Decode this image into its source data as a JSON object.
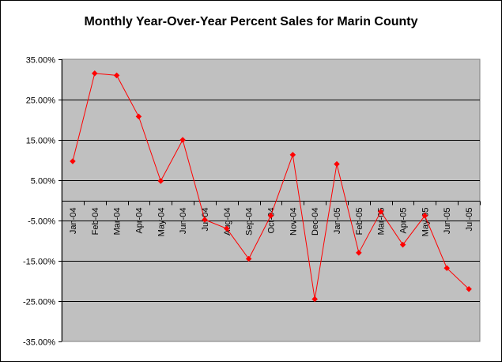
{
  "chart_data": {
    "type": "line",
    "title": "Monthly Year-Over-Year Percent Sales for Marin County",
    "xlabel": "",
    "ylabel": "",
    "categories": [
      "Jan-04",
      "Feb-04",
      "Mar-04",
      "Apr-04",
      "May-04",
      "Jun-04",
      "Jul-04",
      "Aug-04",
      "Sep-04",
      "Oct-04",
      "Nov-04",
      "Dec-04",
      "Jan-05",
      "Feb-05",
      "Mar-05",
      "Apr-05",
      "May-05",
      "Jun-05",
      "Jul-05"
    ],
    "series": [
      {
        "values": [
          9.7,
          31.5,
          31.0,
          20.8,
          4.8,
          15.0,
          -4.8,
          -7.0,
          -14.5,
          -3.8,
          11.3,
          -24.5,
          9.0,
          -13.0,
          -2.8,
          -11.0,
          -3.8,
          -16.8,
          -22.0
        ]
      }
    ],
    "yticks": [
      "35.00%",
      "25.00%",
      "15.00%",
      "5.00%",
      "-5.00%",
      "-15.00%",
      "-25.00%",
      "-35.00%"
    ],
    "ytick_values": [
      35,
      25,
      15,
      5,
      -5,
      -15,
      -25,
      -35
    ],
    "ylim": [
      -35,
      35
    ],
    "grid": true,
    "legend": "none",
    "colors": {
      "plot_bg": "#c0c0c0",
      "line": "#ff0000",
      "grid": "#000000"
    }
  }
}
